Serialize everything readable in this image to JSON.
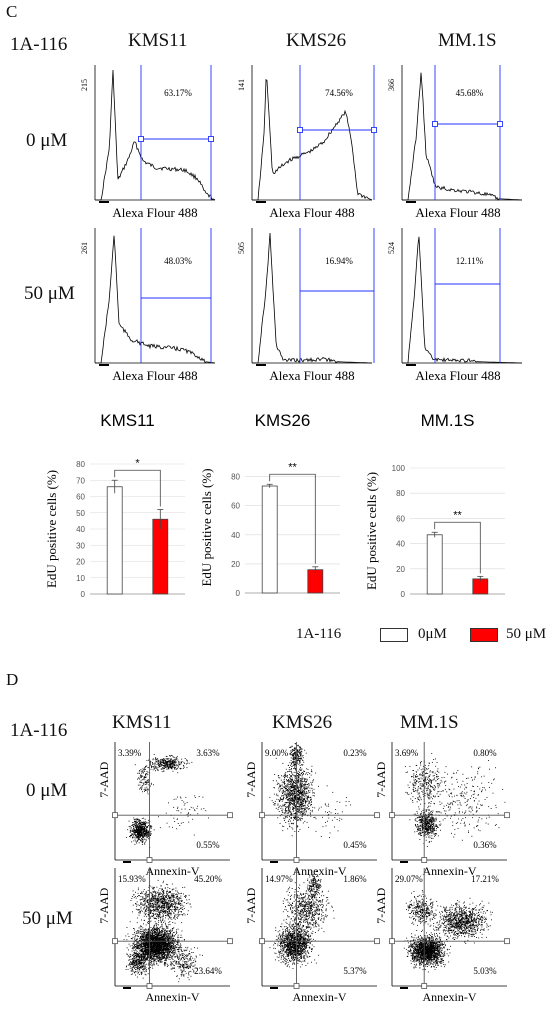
{
  "panel_c": {
    "letter": "C",
    "treatment": "1A-116",
    "cell_lines": [
      "KMS11",
      "KMS26",
      "MM.1S"
    ],
    "doses": [
      "0 μM",
      "50 μM"
    ],
    "x_axis_label": "Alexa Flour 488",
    "histograms": [
      {
        "cell_line": "KMS11",
        "dose": "0 μM",
        "ymax_label": "215",
        "percent": "63.17%"
      },
      {
        "cell_line": "KMS26",
        "dose": "0 μM",
        "ymax_label": "141",
        "percent": "74.56%"
      },
      {
        "cell_line": "MM.1S",
        "dose": "0 μM",
        "ymax_label": "366",
        "percent": "45.68%"
      },
      {
        "cell_line": "KMS11",
        "dose": "50 μM",
        "ymax_label": "261",
        "percent": "48.03%"
      },
      {
        "cell_line": "KMS26",
        "dose": "50 μM",
        "ymax_label": "505",
        "percent": "16.94%"
      },
      {
        "cell_line": "MM.1S",
        "dose": "50 μM",
        "ymax_label": "524",
        "percent": "12.11%"
      }
    ]
  },
  "legend": {
    "treatment": "1A-116",
    "items": [
      {
        "label": "0μM",
        "color": "#ffffff"
      },
      {
        "label": "50 μM",
        "color": "#ff0000"
      }
    ]
  },
  "panel_d": {
    "letter": "D",
    "treatment": "1A-116",
    "cell_lines": [
      "KMS11",
      "KMS26",
      "MM.1S"
    ],
    "doses": [
      "0 μM",
      "50 μM"
    ],
    "x_axis_label": "Annexin-V",
    "y_axis_label": "7-AAD",
    "plots": [
      {
        "cell_line": "KMS11",
        "dose": "0 μM",
        "ul": "3.39%",
        "ur": "3.63%",
        "lr": "0.55%"
      },
      {
        "cell_line": "KMS26",
        "dose": "0 μM",
        "ul": "9.00%",
        "ur": "0.23%",
        "lr": "0.45%"
      },
      {
        "cell_line": "MM.1S",
        "dose": "0 μM",
        "ul": "3.69%",
        "ur": "0.80%",
        "lr": "0.36%"
      },
      {
        "cell_line": "KMS11",
        "dose": "50 μM",
        "ul": "15.93%",
        "ur": "45.20%",
        "lr": "23.64%"
      },
      {
        "cell_line": "KMS26",
        "dose": "50 μM",
        "ul": "14.97%",
        "ur": "1.86%",
        "lr": "5.37%"
      },
      {
        "cell_line": "MM.1S",
        "dose": "50 μM",
        "ul": "29.07%",
        "ur": "17.21%",
        "lr": "5.03%"
      }
    ]
  },
  "chart_data": [
    {
      "type": "bar",
      "title": "KMS11",
      "ylabel": "EdU positive cells (%)",
      "categories": [
        "0μM",
        "50 μM"
      ],
      "values": [
        66,
        46
      ],
      "errors": [
        4,
        6
      ],
      "colors": [
        "#ffffff",
        "#ff0000"
      ],
      "ylim": [
        0,
        80
      ],
      "yticks": [
        0,
        10,
        20,
        30,
        40,
        50,
        60,
        70,
        80
      ],
      "significance": "*",
      "grid": true
    },
    {
      "type": "bar",
      "title": "KMS26",
      "ylabel": "EdU positive cells (%)",
      "categories": [
        "0μM",
        "50 μM"
      ],
      "values": [
        73.5,
        16
      ],
      "errors": [
        1.2,
        2
      ],
      "colors": [
        "#ffffff",
        "#ff0000"
      ],
      "ylim": [
        0,
        90
      ],
      "yticks": [
        0,
        20,
        40,
        60,
        80
      ],
      "significance": "**",
      "grid": true
    },
    {
      "type": "bar",
      "title": "MM.1S",
      "ylabel": "EdU positive cells (%)",
      "categories": [
        "0μM",
        "50 μM"
      ],
      "values": [
        47,
        12
      ],
      "errors": [
        2,
        2
      ],
      "colors": [
        "#ffffff",
        "#ff0000"
      ],
      "ylim": [
        0,
        100
      ],
      "yticks": [
        0,
        20,
        40,
        60,
        80,
        100
      ],
      "significance": "**",
      "grid": true
    }
  ]
}
